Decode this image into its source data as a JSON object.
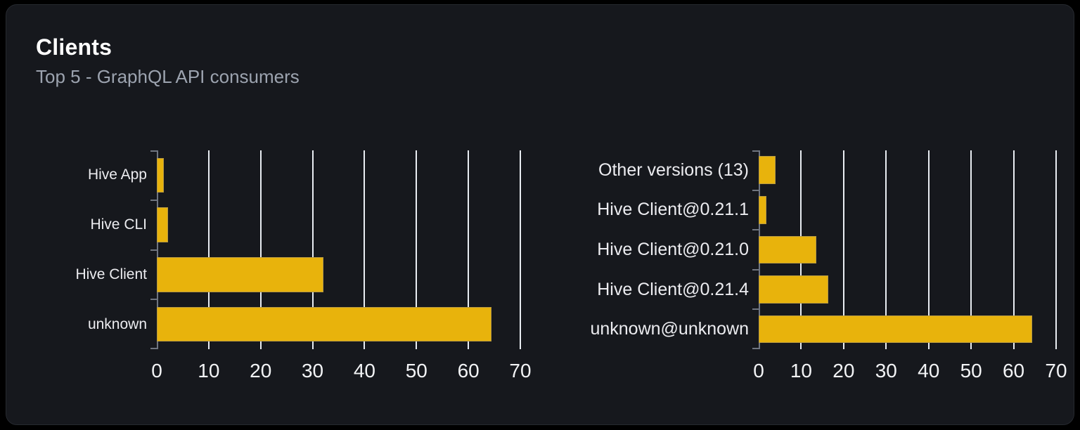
{
  "card": {
    "title": "Clients",
    "subtitle": "Top 5 - GraphQL API consumers"
  },
  "colors": {
    "page_bg": "#000000",
    "card_bg": "#16181d",
    "card_border": "#26292f",
    "title": "#ffffff",
    "subtitle": "#9ca3af",
    "bar_fill": "#e8b30c",
    "axis": "#6f7580",
    "gridline": "#e9edf2",
    "tick_label": "#f2f3f5",
    "category_label": "#ececf0"
  },
  "chart_data": [
    {
      "type": "bar",
      "orientation": "horizontal",
      "name": "clients-by-name",
      "categories": [
        "Hive App",
        "Hive CLI",
        "Hive Client",
        "unknown"
      ],
      "values": [
        1.4,
        2.1,
        32.1,
        64.4
      ],
      "xlim": [
        0,
        70
      ],
      "xticks": [
        0,
        10,
        20,
        30,
        40,
        50,
        60,
        70
      ],
      "grid": true,
      "legend": "none",
      "xlabel": "",
      "ylabel": ""
    },
    {
      "type": "bar",
      "orientation": "horizontal",
      "name": "clients-by-version",
      "categories": [
        "Other versions (13)",
        "Hive Client@0.21.1",
        "Hive Client@0.21.0",
        "Hive Client@0.21.4",
        "unknown@unknown"
      ],
      "values": [
        4.0,
        1.9,
        13.6,
        16.4,
        64.4
      ],
      "xlim": [
        0,
        70
      ],
      "xticks": [
        0,
        10,
        20,
        30,
        40,
        50,
        60,
        70
      ],
      "grid": true,
      "legend": "none",
      "xlabel": "",
      "ylabel": ""
    }
  ]
}
